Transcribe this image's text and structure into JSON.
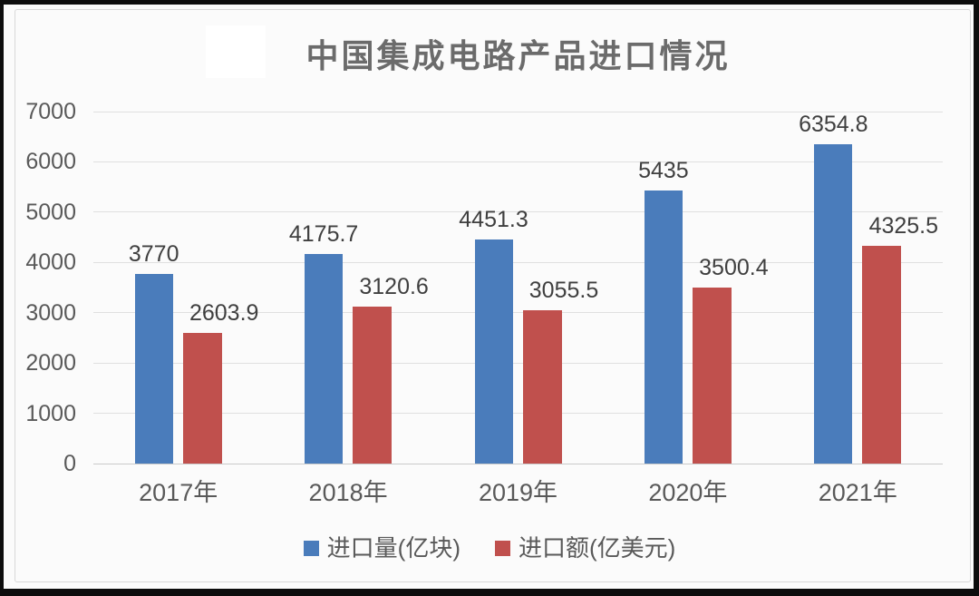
{
  "title": "中国集成电路产品进口情况",
  "chart_data": {
    "type": "bar",
    "title": "中国集成电路产品进口情况",
    "categories": [
      "2017年",
      "2018年",
      "2019年",
      "2020年",
      "2021年"
    ],
    "series": [
      {
        "name": "进口量(亿块)",
        "color": "#4A7CBB",
        "values": [
          3770,
          4175.7,
          4451.3,
          5435,
          6354.8
        ],
        "labels": [
          "3770",
          "4175.7",
          "4451.3",
          "5435",
          "6354.8"
        ]
      },
      {
        "name": "进口额(亿美元)",
        "color": "#C0504D",
        "values": [
          2603.9,
          3120.6,
          3055.5,
          3500.4,
          4325.5
        ],
        "labels": [
          "2603.9",
          "3120.6",
          "3055.5",
          "3500.4",
          "4325.5"
        ]
      }
    ],
    "xlabel": "",
    "ylabel": "",
    "ylim": [
      0,
      7000
    ],
    "yticks": [
      0,
      1000,
      2000,
      3000,
      4000,
      5000,
      6000,
      7000
    ],
    "grid": true,
    "legend_position": "bottom"
  }
}
